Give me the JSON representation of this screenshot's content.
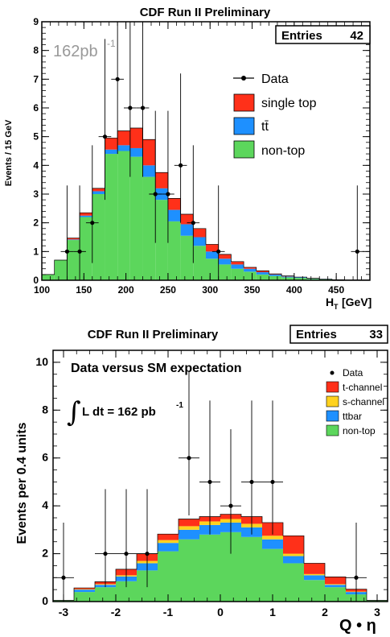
{
  "colors": {
    "single_top": "#ff3019",
    "t_channel": "#ff3019",
    "s_channel": "#ffd21e",
    "ttbar": "#1e90ff",
    "non_top": "#5cd65c",
    "data": "#000000"
  },
  "chart_data": [
    {
      "type": "bar",
      "title": "CDF Run II Preliminary",
      "xlabel_main": "H",
      "xlabel_sub": "T",
      "xlabel_unit": "[GeV]",
      "ylabel": "Events / 15 GeV",
      "entries_label": "Entries",
      "entries_value": "42",
      "luminosity_main": "162pb",
      "luminosity_exp": "-1",
      "xlim": [
        100,
        490
      ],
      "ylim": [
        0,
        9
      ],
      "xticks": [
        100,
        150,
        200,
        250,
        300,
        350,
        400,
        450
      ],
      "yticks": [
        0,
        1,
        2,
        3,
        4,
        5,
        6,
        7,
        8,
        9
      ],
      "bin_edges": [
        100,
        115,
        130,
        145,
        160,
        175,
        190,
        205,
        220,
        235,
        250,
        265,
        280,
        295,
        310,
        325,
        340,
        355,
        370,
        385,
        400,
        415,
        430,
        445,
        460,
        475,
        490
      ],
      "legend": [
        {
          "key": "data",
          "label": "Data"
        },
        {
          "key": "single_top",
          "label": "single top"
        },
        {
          "key": "ttbar",
          "label": "tt̄"
        },
        {
          "key": "non_top",
          "label": "non-top"
        }
      ],
      "series": [
        {
          "key": "non_top",
          "name": "non-top",
          "values": [
            0.2,
            0.7,
            1.4,
            2.2,
            3.0,
            4.4,
            4.5,
            4.3,
            3.6,
            2.8,
            2.05,
            1.55,
            1.2,
            0.75,
            0.55,
            0.4,
            0.3,
            0.2,
            0.15,
            0.1,
            0.08,
            0.05,
            0.03,
            0.02,
            0.01,
            0.01
          ]
        },
        {
          "key": "ttbar",
          "name": "tt̄",
          "values": [
            0.0,
            0.0,
            0.02,
            0.05,
            0.1,
            0.15,
            0.2,
            0.3,
            0.4,
            0.4,
            0.4,
            0.4,
            0.3,
            0.25,
            0.2,
            0.15,
            0.1,
            0.08,
            0.05,
            0.03,
            0.02,
            0.01,
            0.01,
            0.0,
            0.0,
            0.0
          ]
        },
        {
          "key": "single_top",
          "name": "single top",
          "values": [
            0.0,
            0.0,
            0.05,
            0.1,
            0.1,
            0.4,
            0.5,
            0.7,
            0.9,
            0.55,
            0.4,
            0.35,
            0.3,
            0.25,
            0.15,
            0.1,
            0.05,
            0.05,
            0.02,
            0.02,
            0.01,
            0.01,
            0.0,
            0.0,
            0.0,
            0.0
          ]
        }
      ],
      "data_points": [
        {
          "x": 130,
          "y": 1,
          "err": [
            1.0,
            2.3
          ]
        },
        {
          "x": 145,
          "y": 1,
          "err": [
            1.0,
            2.3
          ]
        },
        {
          "x": 160,
          "y": 2,
          "err": [
            1.4,
            2.7
          ]
        },
        {
          "x": 175,
          "y": 5,
          "err": [
            2.2,
            3.4
          ]
        },
        {
          "x": 190,
          "y": 7,
          "err": [
            2.6,
            3.8
          ]
        },
        {
          "x": 205,
          "y": 6,
          "err": [
            2.4,
            3.6
          ]
        },
        {
          "x": 220,
          "y": 6,
          "err": [
            2.4,
            3.6
          ]
        },
        {
          "x": 235,
          "y": 3,
          "err": [
            1.7,
            2.9
          ]
        },
        {
          "x": 250,
          "y": 3,
          "err": [
            1.7,
            2.9
          ]
        },
        {
          "x": 265,
          "y": 4,
          "err": [
            2.0,
            3.2
          ]
        },
        {
          "x": 280,
          "y": 2,
          "err": [
            1.4,
            2.7
          ]
        },
        {
          "x": 310,
          "y": 1,
          "err": [
            1.0,
            2.3
          ]
        },
        {
          "x": 475,
          "y": 1,
          "err": [
            1.0,
            2.3
          ]
        }
      ]
    },
    {
      "type": "bar",
      "title": "CDF Run II Preliminary",
      "subtitle": "Data versus SM expectation",
      "xlabel": "Q • η",
      "ylabel": "Events per 0.4 units",
      "entries_label": "Entries",
      "entries_value": "33",
      "luminosity_integral": "∫",
      "luminosity_main": "L dt = 162 pb",
      "luminosity_exp": "-1",
      "xlim": [
        -3.2,
        3.2
      ],
      "ylim": [
        0,
        10.5
      ],
      "xticks": [
        -3,
        -2,
        -1,
        0,
        1,
        2,
        3
      ],
      "yticks": [
        0,
        2,
        4,
        6,
        8,
        10
      ],
      "bin_edges": [
        -3.2,
        -2.8,
        -2.4,
        -2.0,
        -1.6,
        -1.2,
        -0.8,
        -0.4,
        0.0,
        0.4,
        0.8,
        1.2,
        1.6,
        2.0,
        2.4,
        2.8,
        3.2
      ],
      "legend": [
        {
          "key": "data",
          "label": "Data"
        },
        {
          "key": "t_channel",
          "label": "t-channel"
        },
        {
          "key": "s_channel",
          "label": "s-channel"
        },
        {
          "key": "ttbar",
          "label": "ttbar"
        },
        {
          "key": "non_top",
          "label": "non-top"
        }
      ],
      "series": [
        {
          "key": "non_top",
          "name": "non-top",
          "values": [
            0.05,
            0.4,
            0.6,
            0.85,
            1.3,
            2.1,
            2.6,
            2.8,
            2.9,
            2.7,
            2.2,
            1.6,
            0.9,
            0.6,
            0.3,
            0.05
          ]
        },
        {
          "key": "ttbar",
          "name": "ttbar",
          "values": [
            0.0,
            0.1,
            0.1,
            0.2,
            0.3,
            0.35,
            0.4,
            0.4,
            0.4,
            0.4,
            0.4,
            0.3,
            0.2,
            0.1,
            0.1,
            0.0
          ]
        },
        {
          "key": "s_channel",
          "name": "s-channel",
          "values": [
            0.0,
            0.02,
            0.03,
            0.05,
            0.1,
            0.12,
            0.15,
            0.15,
            0.15,
            0.15,
            0.15,
            0.1,
            0.05,
            0.03,
            0.02,
            0.0
          ]
        },
        {
          "key": "t_channel",
          "name": "t-channel",
          "values": [
            0.0,
            0.05,
            0.1,
            0.25,
            0.3,
            0.25,
            0.3,
            0.2,
            0.2,
            0.3,
            0.55,
            0.75,
            0.45,
            0.3,
            0.1,
            0.0
          ]
        }
      ],
      "data_points": [
        {
          "x": -3.0,
          "y": 1,
          "err": [
            1.0,
            2.3
          ]
        },
        {
          "x": -2.2,
          "y": 2,
          "err": [
            1.4,
            2.7
          ]
        },
        {
          "x": -1.8,
          "y": 2,
          "err": [
            1.4,
            2.7
          ]
        },
        {
          "x": -1.4,
          "y": 2,
          "err": [
            1.4,
            2.7
          ]
        },
        {
          "x": -0.6,
          "y": 6,
          "err": [
            2.4,
            3.6
          ]
        },
        {
          "x": -0.2,
          "y": 5,
          "err": [
            2.2,
            3.4
          ]
        },
        {
          "x": 0.2,
          "y": 4,
          "err": [
            2.0,
            3.2
          ]
        },
        {
          "x": 0.6,
          "y": 5,
          "err": [
            2.2,
            3.4
          ]
        },
        {
          "x": 1.0,
          "y": 5,
          "err": [
            2.2,
            3.4
          ]
        },
        {
          "x": 2.6,
          "y": 1,
          "err": [
            1.0,
            2.3
          ]
        }
      ]
    }
  ]
}
